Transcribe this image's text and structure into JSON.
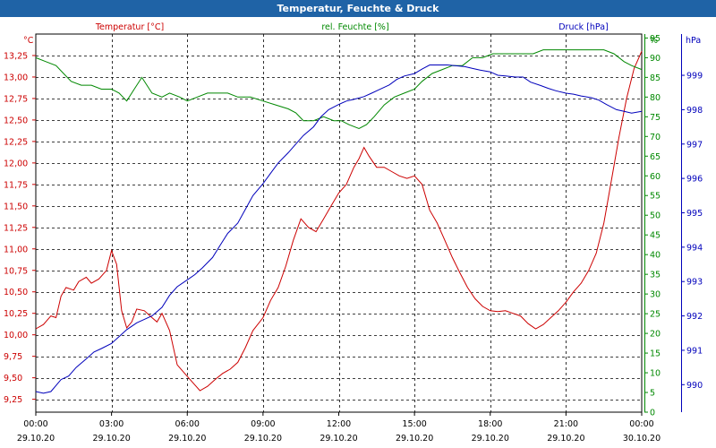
{
  "window_title": "Temperatur, Feuchte & Druck",
  "chart_data": {
    "type": "line",
    "title": "Temperatur, Feuchte & Druck",
    "colors": {
      "temperature": "#cc0000",
      "humidity": "#008800",
      "pressure": "#0000bb",
      "grid": "#000000",
      "title_bar": "#1f63a6"
    },
    "x": {
      "min": 0,
      "max": 24,
      "unit": "hours",
      "ticks": [
        {
          "pos": 0,
          "time": "00:00",
          "date": "29.10.20"
        },
        {
          "pos": 3,
          "time": "03:00",
          "date": "29.10.20"
        },
        {
          "pos": 6,
          "time": "06:00",
          "date": "29.10.20"
        },
        {
          "pos": 9,
          "time": "09:00",
          "date": "29.10.20"
        },
        {
          "pos": 12,
          "time": "12:00",
          "date": "29.10.20"
        },
        {
          "pos": 15,
          "time": "15:00",
          "date": "29.10.20"
        },
        {
          "pos": 18,
          "time": "18:00",
          "date": "29.10.20"
        },
        {
          "pos": 21,
          "time": "21:00",
          "date": "29.10.20"
        },
        {
          "pos": 24,
          "time": "00:00",
          "date": "30.10.20"
        }
      ]
    },
    "axes": {
      "temperature": {
        "unit_label": "°C",
        "legend": "Temperatur [°C]",
        "min": 9.1,
        "max": 13.5,
        "ticks": [
          "9,25",
          "9,50",
          "9,75",
          "10,00",
          "10,25",
          "10,50",
          "10,75",
          "11,00",
          "11,25",
          "11,50",
          "11,75",
          "12,00",
          "12,25",
          "12,50",
          "12,75",
          "13,00",
          "13,25"
        ],
        "tick_values": [
          9.25,
          9.5,
          9.75,
          10.0,
          10.25,
          10.5,
          10.75,
          11.0,
          11.25,
          11.5,
          11.75,
          12.0,
          12.25,
          12.5,
          12.75,
          13.0,
          13.25
        ]
      },
      "humidity": {
        "unit_label": "%",
        "legend": "rel. Feuchte [%]",
        "min": 0,
        "max": 96,
        "ticks": [
          "0",
          "5",
          "10",
          "15",
          "20",
          "25",
          "30",
          "35",
          "40",
          "45",
          "50",
          "55",
          "60",
          "65",
          "70",
          "75",
          "80",
          "85",
          "90",
          "95"
        ],
        "tick_values": [
          0,
          5,
          10,
          15,
          20,
          25,
          30,
          35,
          40,
          45,
          50,
          55,
          60,
          65,
          70,
          75,
          80,
          85,
          90,
          95
        ]
      },
      "pressure": {
        "unit_label": "hPa",
        "legend": "Druck [hPa]",
        "min": 989.2,
        "max": 1000.2,
        "ticks": [
          "990",
          "991",
          "992",
          "993",
          "994",
          "995",
          "996",
          "997",
          "998",
          "999"
        ],
        "tick_values": [
          990,
          991,
          992,
          993,
          994,
          995,
          996,
          997,
          998,
          999
        ]
      }
    },
    "series": [
      {
        "name": "Temperatur [°C]",
        "axis": "temperature",
        "x": [
          0,
          0.3,
          0.6,
          0.8,
          1.0,
          1.2,
          1.5,
          1.7,
          2.0,
          2.2,
          2.5,
          2.8,
          3.0,
          3.2,
          3.4,
          3.6,
          3.8,
          4.0,
          4.3,
          4.6,
          4.8,
          5.0,
          5.3,
          5.6,
          5.9,
          6.2,
          6.5,
          6.8,
          7.1,
          7.4,
          7.7,
          8.0,
          8.3,
          8.6,
          9.0,
          9.3,
          9.6,
          9.9,
          10.2,
          10.5,
          10.8,
          11.1,
          11.4,
          11.7,
          12.0,
          12.3,
          12.6,
          12.8,
          13.0,
          13.2,
          13.5,
          13.8,
          14.1,
          14.4,
          14.7,
          15.0,
          15.3,
          15.6,
          15.9,
          16.2,
          16.5,
          16.8,
          17.1,
          17.4,
          17.7,
          18.0,
          18.3,
          18.6,
          18.9,
          19.2,
          19.5,
          19.8,
          20.1,
          20.4,
          20.7,
          21.0,
          21.3,
          21.6,
          21.9,
          22.2,
          22.5,
          22.8,
          23.1,
          23.4,
          23.7,
          24.0
        ],
        "values": [
          10.07,
          10.12,
          10.22,
          10.2,
          10.45,
          10.55,
          10.52,
          10.62,
          10.67,
          10.6,
          10.65,
          10.75,
          10.98,
          10.82,
          10.28,
          10.08,
          10.15,
          10.3,
          10.28,
          10.2,
          10.15,
          10.25,
          10.05,
          9.65,
          9.55,
          9.45,
          9.35,
          9.4,
          9.48,
          9.55,
          9.6,
          9.68,
          9.85,
          10.05,
          10.2,
          10.4,
          10.55,
          10.8,
          11.1,
          11.35,
          11.25,
          11.2,
          11.35,
          11.5,
          11.65,
          11.75,
          11.95,
          12.05,
          12.18,
          12.08,
          11.95,
          11.95,
          11.9,
          11.85,
          11.82,
          11.85,
          11.75,
          11.45,
          11.3,
          11.1,
          10.9,
          10.72,
          10.55,
          10.42,
          10.33,
          10.28,
          10.27,
          10.28,
          10.25,
          10.22,
          10.13,
          10.07,
          10.12,
          10.2,
          10.28,
          10.38,
          10.5,
          10.6,
          10.75,
          10.95,
          11.3,
          11.8,
          12.3,
          12.75,
          13.1,
          13.3
        ]
      },
      {
        "name": "rel. Feuchte [%]",
        "axis": "humidity",
        "x": [
          0,
          0.4,
          0.8,
          1.1,
          1.4,
          1.8,
          2.2,
          2.6,
          3.0,
          3.3,
          3.6,
          3.9,
          4.2,
          4.6,
          5.0,
          5.3,
          5.7,
          6.0,
          6.4,
          6.8,
          7.2,
          7.6,
          8.0,
          8.5,
          9.0,
          9.5,
          10.0,
          10.3,
          10.6,
          11.0,
          11.4,
          11.8,
          12.1,
          12.4,
          12.8,
          13.1,
          13.4,
          13.8,
          14.2,
          14.6,
          15.0,
          15.3,
          15.7,
          16.1,
          16.5,
          16.9,
          17.3,
          17.7,
          18.1,
          18.5,
          18.9,
          19.3,
          19.7,
          20.1,
          20.5,
          20.9,
          21.3,
          21.7,
          22.1,
          22.5,
          22.9,
          23.3,
          23.6,
          24.0
        ],
        "values": [
          90,
          89,
          88,
          86,
          84,
          83,
          83,
          82,
          82,
          81,
          79,
          82,
          85,
          81,
          80,
          81,
          80,
          79,
          80,
          81,
          81,
          81,
          80,
          80,
          79,
          78,
          77,
          76,
          74,
          74,
          75,
          74,
          74,
          73,
          72,
          73,
          75,
          78,
          80,
          81,
          82,
          84,
          86,
          87,
          88,
          88,
          90,
          90,
          91,
          91,
          91,
          91,
          91,
          92,
          92,
          92,
          92,
          92,
          92,
          92,
          91,
          89,
          88,
          87
        ]
      },
      {
        "name": "Druck [hPa]",
        "axis": "pressure",
        "x": [
          0,
          0.3,
          0.6,
          1.0,
          1.3,
          1.6,
          2.0,
          2.3,
          2.6,
          3.0,
          3.3,
          3.6,
          4.0,
          4.3,
          4.6,
          5.0,
          5.3,
          5.6,
          6.0,
          6.3,
          6.6,
          7.0,
          7.3,
          7.6,
          8.0,
          8.3,
          8.6,
          9.0,
          9.3,
          9.6,
          10.0,
          10.3,
          10.6,
          11.0,
          11.3,
          11.6,
          12.0,
          12.3,
          12.6,
          13.0,
          13.3,
          13.6,
          14.0,
          14.3,
          14.6,
          15.0,
          15.3,
          15.6,
          16.0,
          16.3,
          16.6,
          17.0,
          17.3,
          17.6,
          18.0,
          18.3,
          18.6,
          19.0,
          19.3,
          19.6,
          20.0,
          20.3,
          20.6,
          21.0,
          21.3,
          21.6,
          22.0,
          22.3,
          22.6,
          23.0,
          23.3,
          23.6,
          24.0
        ],
        "values": [
          989.8,
          989.75,
          989.8,
          990.15,
          990.25,
          990.5,
          990.75,
          990.95,
          991.05,
          991.2,
          991.4,
          991.6,
          991.8,
          991.9,
          992.0,
          992.25,
          992.6,
          992.85,
          993.05,
          993.2,
          993.4,
          993.7,
          994.05,
          994.4,
          994.7,
          995.1,
          995.5,
          995.85,
          996.15,
          996.45,
          996.75,
          997.0,
          997.25,
          997.5,
          997.8,
          998.0,
          998.15,
          998.25,
          998.3,
          998.38,
          998.48,
          998.58,
          998.72,
          998.88,
          998.98,
          999.05,
          999.18,
          999.3,
          999.3,
          999.3,
          999.28,
          999.25,
          999.2,
          999.15,
          999.1,
          999.0,
          998.98,
          998.95,
          998.95,
          998.8,
          998.7,
          998.62,
          998.55,
          998.48,
          998.45,
          998.4,
          998.35,
          998.28,
          998.15,
          998.0,
          997.95,
          997.9,
          997.95
        ]
      }
    ]
  }
}
